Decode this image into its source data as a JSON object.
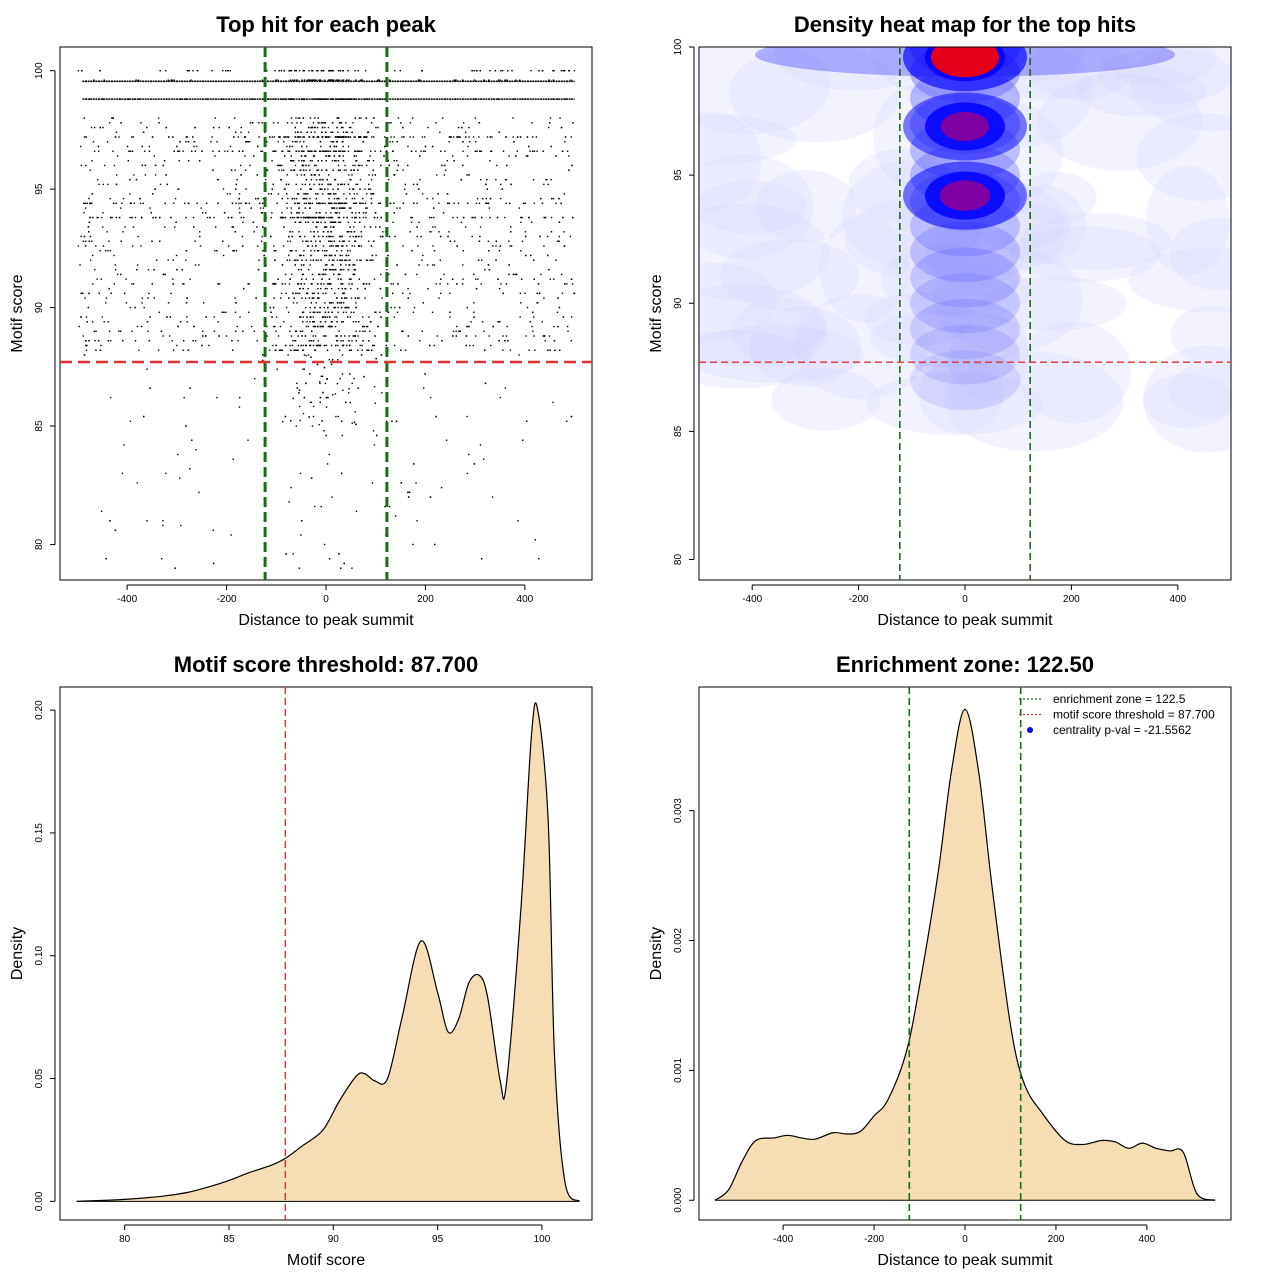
{
  "chart_data": [
    {
      "type": "scatter",
      "title": "Top hit for each peak",
      "xlabel": "Distance to peak summit",
      "ylabel": "Motif score",
      "xlim": [
        -535,
        535
      ],
      "ylim": [
        78.5,
        101
      ],
      "xticks": [
        -400,
        -200,
        0,
        200,
        400
      ],
      "yticks": [
        80,
        85,
        90,
        95,
        100
      ],
      "vlines": [
        -122.5,
        122.5
      ],
      "hline": 87.7,
      "vline_color": "#1a6b1a",
      "hline_color": "#e03030",
      "point_color": "#000000",
      "score_levels": [
        99.95,
        99.55,
        98.8,
        97.1,
        96.6,
        94.4,
        93.7
      ],
      "x_range": [
        -500,
        500
      ],
      "bands": [
        {
          "y": 99.55,
          "x_from": -490,
          "x_to": 500
        },
        {
          "y": 98.8,
          "x_from": -490,
          "x_to": 500
        }
      ],
      "num_points": 3600
    },
    {
      "type": "heatmap",
      "title": "Density heat map for the top hits",
      "xlabel": "Distance to peak summit",
      "ylabel": "Motif score",
      "xlim": [
        -500,
        500
      ],
      "ylim": [
        79.2,
        100
      ],
      "xticks": [
        -400,
        -200,
        0,
        200,
        400
      ],
      "yticks": [
        80,
        85,
        90,
        95,
        100
      ],
      "vlines": [
        -122.5,
        122.5
      ],
      "hline": 87.7,
      "vline_color": "#1a6b1a",
      "hline_color": "#e03030",
      "colors": [
        "#ffffff",
        "#0000ff",
        "#ff0000"
      ],
      "hotspots": [
        {
          "x": 0,
          "y": 99.6,
          "intensity": 1.0
        },
        {
          "x": 0,
          "y": 96.9,
          "intensity": 0.55
        },
        {
          "x": 0,
          "y": 94.2,
          "intensity": 0.6
        }
      ]
    },
    {
      "type": "area",
      "title": "Motif score threshold: 87.700",
      "xlabel": "Motif score",
      "ylabel": "Density",
      "xlim": [
        76.9,
        102.4
      ],
      "ylim": [
        -0.0076,
        0.2094
      ],
      "xticks": [
        80,
        85,
        90,
        95,
        100
      ],
      "yticks": [
        0.0,
        0.05,
        0.1,
        0.15,
        0.2
      ],
      "ytick_labels": [
        "0.00",
        "0.05",
        "0.10",
        "0.15",
        "0.20"
      ],
      "vline": 87.7,
      "vline_color": "#e03030",
      "fill": "#f5deb3",
      "x": [
        77.7,
        79,
        80,
        81,
        82,
        83,
        84,
        85,
        86,
        87,
        87.7,
        88.5,
        89.5,
        90.3,
        91.1,
        91.5,
        92,
        92.6,
        93.3,
        94.2,
        95,
        95.5,
        96,
        96.5,
        97,
        97.4,
        98,
        98.3,
        99,
        99.5,
        99.8,
        100.3,
        100.6,
        101.1,
        101.8
      ],
      "y": [
        0.0,
        0.0004,
        0.0008,
        0.0014,
        0.0023,
        0.0036,
        0.0058,
        0.0085,
        0.0118,
        0.0146,
        0.0175,
        0.0225,
        0.029,
        0.041,
        0.051,
        0.052,
        0.049,
        0.05,
        0.075,
        0.106,
        0.085,
        0.069,
        0.074,
        0.089,
        0.092,
        0.083,
        0.049,
        0.048,
        0.12,
        0.19,
        0.2,
        0.155,
        0.06,
        0.008,
        0.0
      ]
    },
    {
      "type": "area",
      "title": "Enrichment zone: 122.50",
      "xlabel": "Distance to peak summit",
      "ylabel": "Density",
      "xlim": [
        -585,
        585
      ],
      "ylim": [
        -0.000152,
        0.003952
      ],
      "xticks": [
        -400,
        -200,
        0,
        200,
        400
      ],
      "yticks": [
        0.0,
        0.001,
        0.002,
        0.003
      ],
      "ytick_labels": [
        "0.000",
        "0.001",
        "0.002",
        "0.003"
      ],
      "vlines": [
        -122.5,
        122.5
      ],
      "vline_color": "#1a6b1a",
      "fill": "#f5deb3",
      "x": [
        -550,
        -520,
        -490,
        -460,
        -420,
        -390,
        -360,
        -330,
        -290,
        -260,
        -230,
        -200,
        -170,
        -130,
        -100,
        -60,
        -30,
        0,
        30,
        60,
        100,
        130,
        170,
        220,
        260,
        300,
        330,
        360,
        390,
        420,
        450,
        480,
        510,
        550
      ],
      "y": [
        0.0,
        8e-05,
        0.0003,
        0.00046,
        0.00048,
        0.0005,
        0.00048,
        0.00047,
        0.00052,
        0.00051,
        0.00053,
        0.00065,
        0.00077,
        0.00113,
        0.00165,
        0.0025,
        0.0033,
        0.00378,
        0.0033,
        0.0024,
        0.00135,
        0.0009,
        0.00067,
        0.00046,
        0.00043,
        0.00046,
        0.00045,
        0.0004,
        0.00044,
        0.0004,
        0.00038,
        0.00037,
        5e-05,
        0.0
      ],
      "legend": [
        {
          "label": "enrichment zone = 122.5",
          "style": "dotted",
          "color": "#1a6b1a"
        },
        {
          "label": "motif score threshold = 87.700",
          "style": "dotted",
          "color": "#e03030"
        },
        {
          "label": "centrality p-val = -21.5562",
          "style": "point",
          "color": "#0000ff"
        }
      ],
      "legend_position": "top-right"
    }
  ]
}
